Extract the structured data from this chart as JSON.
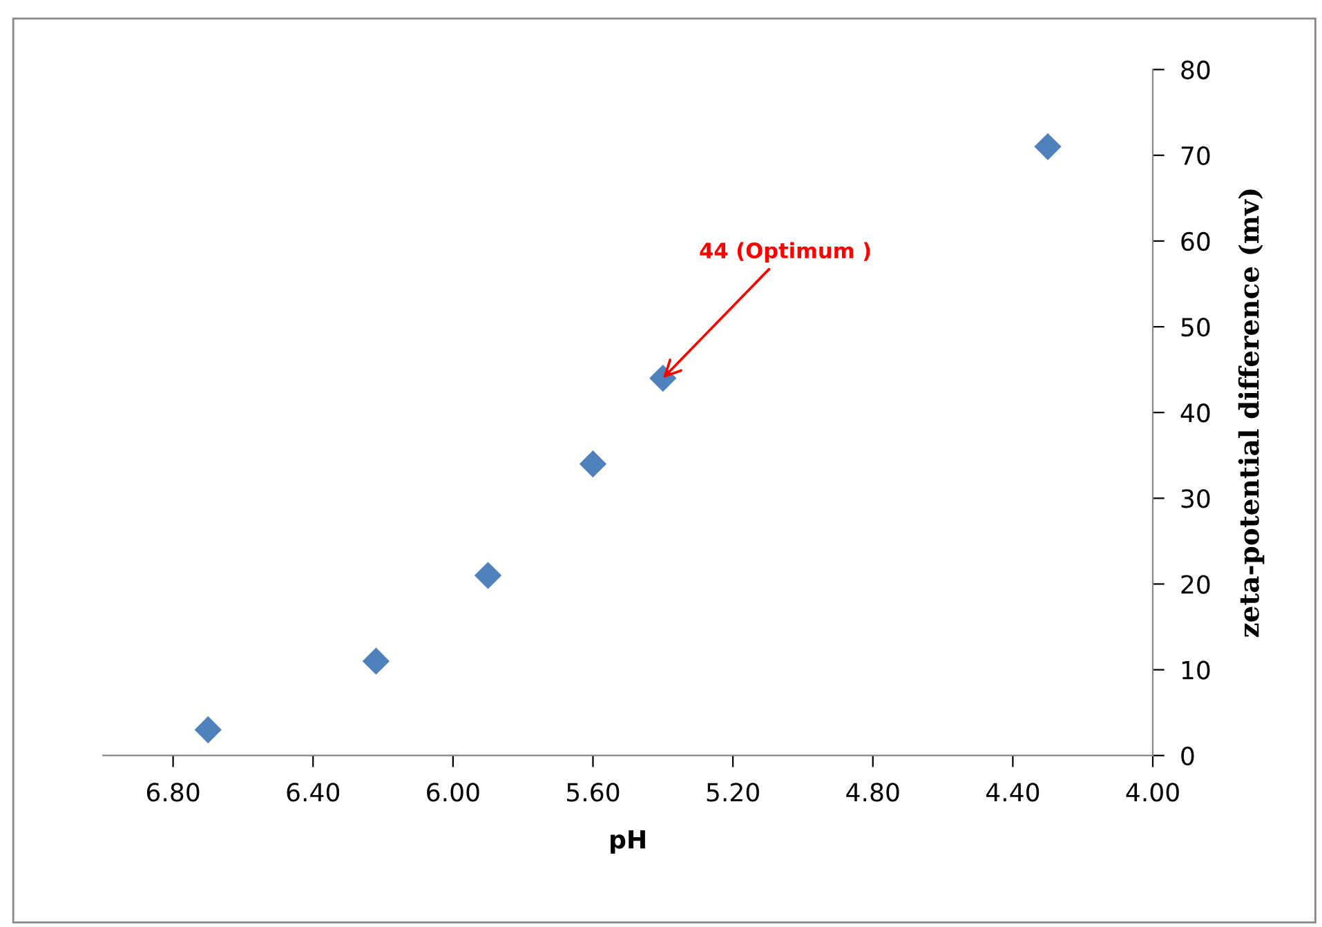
{
  "chart_data": {
    "type": "scatter",
    "xlabel": "pH",
    "ylabel": "zeta-potential difference (mv)",
    "x": [
      6.7,
      6.22,
      5.9,
      5.6,
      5.4,
      4.3
    ],
    "values": [
      3,
      11,
      21,
      34,
      44,
      71
    ],
    "color": "#4f81bd",
    "marker": "diamond",
    "xlim": [
      7.0,
      4.0
    ],
    "xticks": [
      {
        "value": 6.8,
        "label": "6.80"
      },
      {
        "value": 6.4,
        "label": "6.40"
      },
      {
        "value": 6.0,
        "label": "6.00"
      },
      {
        "value": 5.6,
        "label": "5.60"
      },
      {
        "value": 5.2,
        "label": "5.20"
      },
      {
        "value": 4.8,
        "label": "4.80"
      },
      {
        "value": 4.4,
        "label": "4.40"
      },
      {
        "value": 4.0,
        "label": "4.00"
      }
    ],
    "ylim": [
      0,
      80
    ],
    "yticks": [
      0,
      10,
      20,
      30,
      40,
      50,
      60,
      70,
      80
    ],
    "annotations": [
      {
        "text": "44 (Optimum )",
        "x": 5.4,
        "y": 44
      }
    ],
    "grid": false,
    "legend": false
  }
}
